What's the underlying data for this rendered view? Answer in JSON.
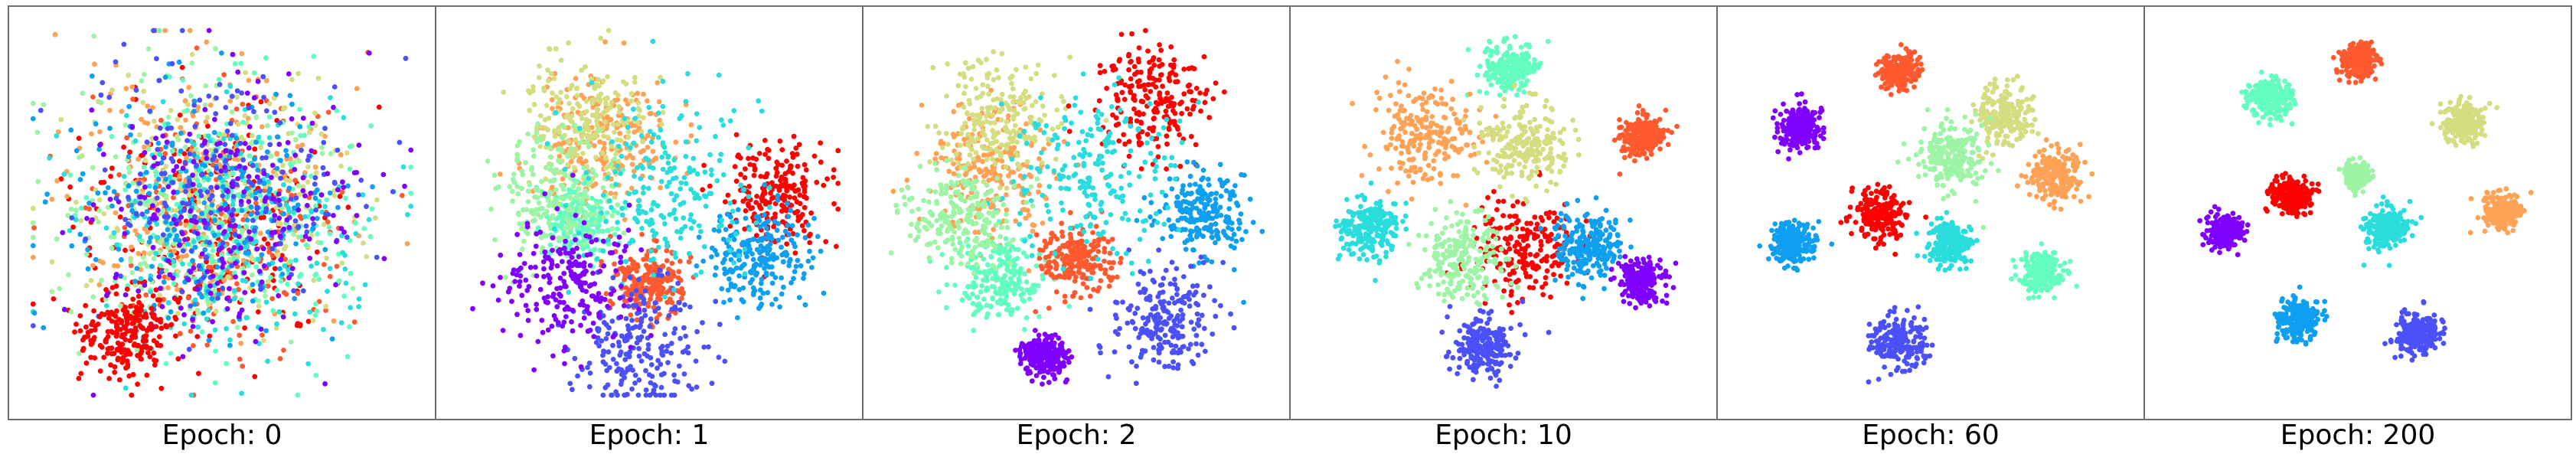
{
  "figure": {
    "panels": [
      {
        "caption": "Epoch: 0"
      },
      {
        "caption": "Epoch: 1"
      },
      {
        "caption": "Epoch: 2"
      },
      {
        "caption": "Epoch: 10"
      },
      {
        "caption": "Epoch: 60"
      },
      {
        "caption": "Epoch: 200"
      }
    ]
  },
  "palette": [
    "#8000ff",
    "#4b50f8",
    "#0f9ff0",
    "#2adddd",
    "#64fdc0",
    "#9cf4a4",
    "#d4dd80",
    "#ffa256",
    "#ff5a2f",
    "#ff0000"
  ],
  "chart_data": [
    {
      "type": "scatter",
      "title": "Epoch: 0",
      "classes": 10,
      "description_of_data": "t-SNE embedding, all classes intermixed",
      "clusters": [
        {
          "class": 9,
          "center": [
            0.45,
            0.55
          ],
          "spread": 0.3
        },
        {
          "class": 8,
          "center": [
            0.5,
            0.5
          ],
          "spread": 0.3
        },
        {
          "class": 7,
          "center": [
            0.45,
            0.45
          ],
          "spread": 0.3
        },
        {
          "class": 6,
          "center": [
            0.5,
            0.45
          ],
          "spread": 0.3
        },
        {
          "class": 5,
          "center": [
            0.4,
            0.5
          ],
          "spread": 0.3
        },
        {
          "class": 4,
          "center": [
            0.55,
            0.5
          ],
          "spread": 0.3
        },
        {
          "class": 3,
          "center": [
            0.5,
            0.55
          ],
          "spread": 0.3
        },
        {
          "class": 2,
          "center": [
            0.45,
            0.5
          ],
          "spread": 0.3
        },
        {
          "class": 1,
          "center": [
            0.5,
            0.45
          ],
          "spread": 0.3
        },
        {
          "class": 0,
          "center": [
            0.5,
            0.5
          ],
          "spread": 0.3
        },
        {
          "class": 9,
          "center": [
            0.25,
            0.82
          ],
          "spread": 0.1
        }
      ]
    },
    {
      "type": "scatter",
      "title": "Epoch: 1",
      "classes": 10,
      "clusters": [
        {
          "class": 7,
          "center": [
            0.38,
            0.32
          ],
          "spread": 0.16
        },
        {
          "class": 6,
          "center": [
            0.35,
            0.25
          ],
          "spread": 0.14
        },
        {
          "class": 9,
          "center": [
            0.82,
            0.45
          ],
          "spread": 0.12
        },
        {
          "class": 4,
          "center": [
            0.32,
            0.52
          ],
          "spread": 0.08
        },
        {
          "class": 8,
          "center": [
            0.5,
            0.68
          ],
          "spread": 0.08
        },
        {
          "class": 1,
          "center": [
            0.48,
            0.85
          ],
          "spread": 0.15
        },
        {
          "class": 2,
          "center": [
            0.78,
            0.62
          ],
          "spread": 0.12
        },
        {
          "class": 5,
          "center": [
            0.25,
            0.45
          ],
          "spread": 0.14
        },
        {
          "class": 3,
          "center": [
            0.55,
            0.45
          ],
          "spread": 0.22
        },
        {
          "class": 0,
          "center": [
            0.3,
            0.68
          ],
          "spread": 0.15
        }
      ]
    },
    {
      "type": "scatter",
      "title": "Epoch: 2",
      "classes": 10,
      "clusters": [
        {
          "class": 7,
          "center": [
            0.28,
            0.38
          ],
          "spread": 0.15
        },
        {
          "class": 6,
          "center": [
            0.3,
            0.25
          ],
          "spread": 0.14
        },
        {
          "class": 9,
          "center": [
            0.7,
            0.2
          ],
          "spread": 0.13
        },
        {
          "class": 4,
          "center": [
            0.3,
            0.68
          ],
          "spread": 0.1
        },
        {
          "class": 8,
          "center": [
            0.5,
            0.62
          ],
          "spread": 0.08
        },
        {
          "class": 2,
          "center": [
            0.82,
            0.5
          ],
          "spread": 0.1
        },
        {
          "class": 1,
          "center": [
            0.72,
            0.78
          ],
          "spread": 0.12
        },
        {
          "class": 0,
          "center": [
            0.42,
            0.88
          ],
          "spread": 0.05
        },
        {
          "class": 3,
          "center": [
            0.55,
            0.4
          ],
          "spread": 0.2
        },
        {
          "class": 5,
          "center": [
            0.2,
            0.5
          ],
          "spread": 0.12
        }
      ]
    },
    {
      "type": "scatter",
      "title": "Epoch: 10",
      "classes": 10,
      "clusters": [
        {
          "class": 4,
          "center": [
            0.52,
            0.12
          ],
          "spread": 0.06
        },
        {
          "class": 7,
          "center": [
            0.3,
            0.3
          ],
          "spread": 0.12
        },
        {
          "class": 8,
          "center": [
            0.85,
            0.3
          ],
          "spread": 0.05
        },
        {
          "class": 3,
          "center": [
            0.16,
            0.54
          ],
          "spread": 0.07
        },
        {
          "class": 9,
          "center": [
            0.55,
            0.6
          ],
          "spread": 0.12
        },
        {
          "class": 2,
          "center": [
            0.72,
            0.58
          ],
          "spread": 0.08
        },
        {
          "class": 0,
          "center": [
            0.85,
            0.68
          ],
          "spread": 0.05
        },
        {
          "class": 1,
          "center": [
            0.45,
            0.85
          ],
          "spread": 0.07
        },
        {
          "class": 6,
          "center": [
            0.55,
            0.32
          ],
          "spread": 0.1
        },
        {
          "class": 5,
          "center": [
            0.4,
            0.62
          ],
          "spread": 0.1
        }
      ]
    },
    {
      "type": "scatter",
      "title": "Epoch: 60",
      "classes": 10,
      "clusters": [
        {
          "class": 8,
          "center": [
            0.42,
            0.13
          ],
          "spread": 0.045
        },
        {
          "class": 6,
          "center": [
            0.68,
            0.24
          ],
          "spread": 0.07
        },
        {
          "class": 0,
          "center": [
            0.17,
            0.28
          ],
          "spread": 0.05
        },
        {
          "class": 7,
          "center": [
            0.82,
            0.4
          ],
          "spread": 0.06
        },
        {
          "class": 9,
          "center": [
            0.37,
            0.5
          ],
          "spread": 0.06
        },
        {
          "class": 2,
          "center": [
            0.15,
            0.58
          ],
          "spread": 0.05
        },
        {
          "class": 3,
          "center": [
            0.55,
            0.58
          ],
          "spread": 0.05
        },
        {
          "class": 4,
          "center": [
            0.78,
            0.66
          ],
          "spread": 0.05
        },
        {
          "class": 1,
          "center": [
            0.42,
            0.84
          ],
          "spread": 0.06
        },
        {
          "class": 5,
          "center": [
            0.55,
            0.35
          ],
          "spread": 0.08
        }
      ]
    },
    {
      "type": "scatter",
      "title": "Epoch: 200",
      "classes": 10,
      "clusters": [
        {
          "class": 8,
          "center": [
            0.5,
            0.1
          ],
          "spread": 0.04
        },
        {
          "class": 4,
          "center": [
            0.28,
            0.2
          ],
          "spread": 0.05
        },
        {
          "class": 6,
          "center": [
            0.77,
            0.26
          ],
          "spread": 0.05
        },
        {
          "class": 9,
          "center": [
            0.33,
            0.45
          ],
          "spread": 0.045
        },
        {
          "class": 7,
          "center": [
            0.87,
            0.5
          ],
          "spread": 0.045
        },
        {
          "class": 0,
          "center": [
            0.16,
            0.55
          ],
          "spread": 0.04
        },
        {
          "class": 3,
          "center": [
            0.57,
            0.54
          ],
          "spread": 0.05
        },
        {
          "class": 2,
          "center": [
            0.35,
            0.78
          ],
          "spread": 0.05
        },
        {
          "class": 1,
          "center": [
            0.65,
            0.82
          ],
          "spread": 0.05
        },
        {
          "class": 5,
          "center": [
            0.5,
            0.4
          ],
          "spread": 0.03
        }
      ]
    }
  ]
}
